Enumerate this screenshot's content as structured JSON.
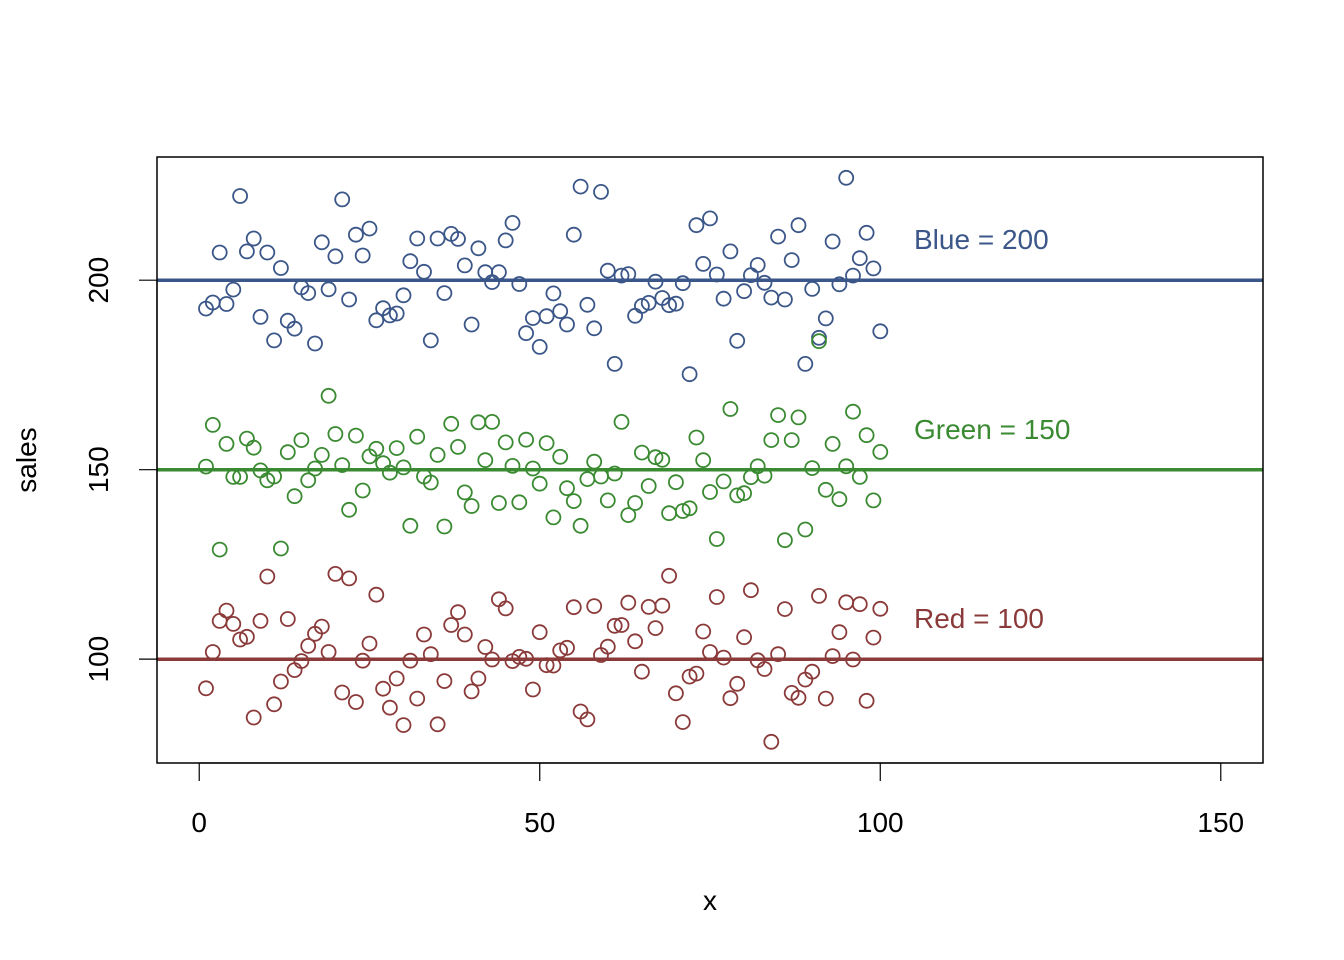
{
  "chart_data": {
    "type": "scatter",
    "title": "",
    "xlabel": "x",
    "ylabel": "sales",
    "xlim": [
      -6.2,
      156.2
    ],
    "ylim": [
      72.6,
      232.5
    ],
    "grid": false,
    "legend": null,
    "x_ticks": [
      0,
      50,
      100,
      150
    ],
    "y_ticks": [
      100,
      150,
      200
    ],
    "series": [
      {
        "name": "Blue",
        "color": "#3B5688",
        "reference_line": 200,
        "annotation": "Blue = 200",
        "x": [
          1,
          2,
          3,
          4,
          5,
          6,
          7,
          8,
          9,
          10,
          11,
          12,
          13,
          14,
          15,
          16,
          17,
          18,
          19,
          20,
          21,
          22,
          23,
          24,
          25,
          26,
          27,
          28,
          29,
          30,
          31,
          32,
          33,
          34,
          35,
          36,
          37,
          38,
          39,
          40,
          41,
          42,
          43,
          44,
          45,
          46,
          47,
          48,
          49,
          50,
          51,
          52,
          53,
          54,
          55,
          56,
          57,
          58,
          59,
          60,
          61,
          62,
          63,
          64,
          65,
          66,
          67,
          68,
          69,
          70,
          71,
          72,
          73,
          74,
          75,
          76,
          77,
          78,
          79,
          80,
          81,
          82,
          83,
          84,
          85,
          86,
          87,
          88,
          89,
          90,
          91,
          92,
          93,
          94,
          95,
          96,
          97,
          98,
          99,
          100
        ],
        "values": [
          192.5,
          194.1,
          207.3,
          193.7,
          197.5,
          222.2,
          207.6,
          211.0,
          190.3,
          207.3,
          184.1,
          203.2,
          189.3,
          187.2,
          198.1,
          196.6,
          183.3,
          210.0,
          197.6,
          206.3,
          221.3,
          194.9,
          212.0,
          206.5,
          213.6,
          189.4,
          192.6,
          190.7,
          191.2,
          196.0,
          205.0,
          211.0,
          202.2,
          184.1,
          211.0,
          196.6,
          212.2,
          210.9,
          203.9,
          188.3,
          208.4,
          202.1,
          199.5,
          202.1,
          210.5,
          215.1,
          199.0,
          186.0,
          190.0,
          182.4,
          190.5,
          196.5,
          191.8,
          188.3,
          212.0,
          224.7,
          193.5,
          187.3,
          223.3,
          202.5,
          177.9,
          201.2,
          201.6,
          190.6,
          193.2,
          194.0,
          199.6,
          195.3,
          193.4,
          193.8,
          199.2,
          175.2,
          214.5,
          204.3,
          216.3,
          201.5,
          195.1,
          207.6,
          184.0,
          197.1,
          201.3,
          204.0,
          199.3,
          195.4,
          211.5,
          194.9,
          205.3,
          214.5,
          177.9,
          197.7,
          184.8,
          189.9,
          210.2,
          198.9,
          227.0,
          201.2,
          205.8,
          212.5,
          203.1,
          186.5
        ]
      },
      {
        "name": "Green",
        "color": "#3A8A32",
        "reference_line": 150,
        "annotation": "Green = 150",
        "x": [
          1,
          2,
          3,
          4,
          5,
          6,
          7,
          8,
          9,
          10,
          11,
          12,
          13,
          14,
          15,
          16,
          17,
          18,
          19,
          20,
          21,
          22,
          23,
          24,
          25,
          26,
          27,
          28,
          29,
          30,
          31,
          32,
          33,
          34,
          35,
          36,
          37,
          38,
          39,
          40,
          41,
          42,
          43,
          44,
          45,
          46,
          47,
          48,
          49,
          50,
          51,
          52,
          53,
          54,
          55,
          56,
          57,
          58,
          59,
          60,
          61,
          62,
          63,
          64,
          65,
          66,
          67,
          68,
          69,
          70,
          71,
          72,
          73,
          74,
          75,
          76,
          77,
          78,
          79,
          80,
          81,
          82,
          83,
          84,
          85,
          86,
          87,
          88,
          89,
          90,
          91,
          92,
          93,
          94,
          95,
          96,
          97,
          98,
          99,
          100
        ],
        "values": [
          150.8,
          161.8,
          128.9,
          156.8,
          148.1,
          148.1,
          158.2,
          155.8,
          149.8,
          147.2,
          148.2,
          129.2,
          154.6,
          143.0,
          157.8,
          147.2,
          150.3,
          153.9,
          169.5,
          159.4,
          151.2,
          139.4,
          159.0,
          144.5,
          153.5,
          155.5,
          151.7,
          149.2,
          155.7,
          150.6,
          135.2,
          158.7,
          148.2,
          146.6,
          153.9,
          135.0,
          162.1,
          156.0,
          144.0,
          140.4,
          162.5,
          152.5,
          162.6,
          141.2,
          157.2,
          151.0,
          141.4,
          157.9,
          150.3,
          146.3,
          157.0,
          137.4,
          153.4,
          145.1,
          141.7,
          135.2,
          147.5,
          152.1,
          148.2,
          141.9,
          149.0,
          162.6,
          138.0,
          141.2,
          154.5,
          145.7,
          153.3,
          152.6,
          138.5,
          146.7,
          139.1,
          139.8,
          158.5,
          152.5,
          144.1,
          131.7,
          146.9,
          166.0,
          143.2,
          143.8,
          148.0,
          150.9,
          148.4,
          157.8,
          164.4,
          131.4,
          157.8,
          163.8,
          134.2,
          150.4,
          183.9,
          144.7,
          156.8,
          142.2,
          150.9,
          165.3,
          148.1,
          159.1,
          141.9,
          154.7
        ]
      },
      {
        "name": "Red",
        "color": "#8B3A3A",
        "reference_line": 100,
        "annotation": "Red = 100",
        "x": [
          1,
          2,
          3,
          4,
          5,
          6,
          7,
          8,
          9,
          10,
          11,
          12,
          13,
          14,
          15,
          16,
          17,
          18,
          19,
          20,
          21,
          22,
          23,
          24,
          25,
          26,
          27,
          28,
          29,
          30,
          31,
          32,
          33,
          34,
          35,
          36,
          37,
          38,
          39,
          40,
          41,
          42,
          43,
          44,
          45,
          46,
          47,
          48,
          49,
          50,
          51,
          52,
          53,
          54,
          55,
          56,
          57,
          58,
          59,
          60,
          61,
          62,
          63,
          64,
          65,
          66,
          67,
          68,
          69,
          70,
          71,
          72,
          73,
          74,
          75,
          76,
          77,
          78,
          79,
          80,
          81,
          82,
          83,
          84,
          85,
          86,
          87,
          88,
          89,
          90,
          91,
          92,
          93,
          94,
          95,
          96,
          97,
          98,
          99,
          100
        ],
        "values": [
          92.3,
          101.9,
          110.1,
          112.8,
          109.3,
          105.2,
          105.9,
          84.6,
          110.1,
          121.8,
          88.1,
          94.1,
          110.6,
          97.1,
          99.5,
          103.5,
          106.7,
          108.6,
          101.9,
          122.5,
          91.2,
          121.3,
          88.7,
          99.6,
          104.1,
          117.0,
          92.2,
          87.2,
          94.9,
          82.6,
          99.6,
          89.6,
          106.5,
          101.3,
          82.8,
          94.2,
          109.0,
          112.4,
          106.5,
          91.5,
          94.9,
          103.2,
          99.9,
          115.8,
          113.4,
          99.5,
          100.6,
          100.1,
          92.0,
          107.1,
          98.4,
          98.3,
          102.3,
          103.0,
          113.7,
          86.2,
          84.1,
          114.0,
          101.1,
          103.3,
          108.8,
          109.0,
          114.9,
          104.7,
          96.7,
          113.8,
          108.2,
          114.1,
          122.0,
          91.0,
          83.4,
          95.4,
          96.2,
          107.3,
          101.9,
          116.4,
          100.4,
          89.7,
          93.5,
          105.8,
          118.2,
          99.7,
          97.4,
          78.2,
          101.3,
          113.2,
          91.1,
          89.8,
          94.6,
          96.7,
          116.7,
          89.6,
          100.8,
          107.1,
          115.0,
          99.9,
          114.5,
          89.0,
          105.7,
          113.3
        ]
      }
    ],
    "reference_lines": [
      {
        "y": 200,
        "color": "#3B5688",
        "label": "Blue = 200"
      },
      {
        "y": 150,
        "color": "#3A8A32",
        "label": "Green = 150"
      },
      {
        "y": 100,
        "color": "#8B3A3A",
        "label": "Red = 100"
      }
    ]
  },
  "axes": {
    "xlabel": "x",
    "ylabel": "sales",
    "x_tick_labels": [
      "0",
      "50",
      "100",
      "150"
    ],
    "y_tick_labels": [
      "100",
      "150",
      "200"
    ]
  },
  "annotations": {
    "blue": "Blue = 200",
    "green": "Green = 150",
    "red": "Red = 100"
  }
}
